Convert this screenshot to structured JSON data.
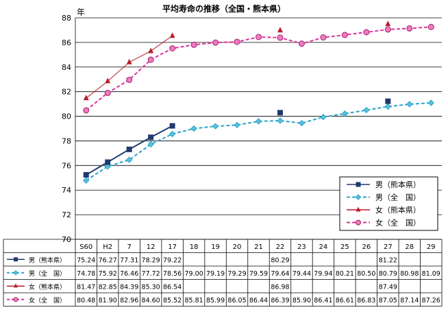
{
  "chart_data": {
    "type": "line",
    "title": "平均寿命の推移（全国・熊本県）",
    "ylabel": "年",
    "xlabel": "",
    "ylim": [
      70,
      88
    ],
    "yticks": [
      70,
      72,
      74,
      76,
      78,
      80,
      82,
      84,
      86,
      88
    ],
    "grid": true,
    "legend_position": "inside-bottom-right",
    "categories": [
      "S60",
      "H2",
      "7",
      "12",
      "17",
      "18",
      "19",
      "20",
      "21",
      "22",
      "23",
      "24",
      "25",
      "26",
      "27",
      "28",
      "29"
    ],
    "series": [
      {
        "name": "男（熊本県）",
        "color": "#1f3a6e",
        "line_style": "solid",
        "marker": "square",
        "values": [
          75.24,
          76.27,
          77.31,
          78.29,
          79.22,
          null,
          null,
          null,
          null,
          80.29,
          null,
          null,
          null,
          null,
          81.22,
          null,
          null
        ],
        "table_values": [
          "75.24",
          "76.27",
          "77.31",
          "78.29",
          "79.22",
          "",
          "",
          "",
          "",
          "80.29",
          "",
          "",
          "",
          "",
          "81.22",
          "",
          ""
        ]
      },
      {
        "name": "男（全　国）",
        "color": "#2aa5c8",
        "line_style": "dashed",
        "marker": "diamond",
        "values": [
          74.78,
          75.92,
          76.46,
          77.72,
          78.56,
          79.0,
          79.19,
          79.29,
          79.59,
          79.64,
          79.44,
          79.94,
          80.21,
          80.5,
          80.79,
          80.98,
          81.09
        ],
        "table_values": [
          "74.78",
          "75.92",
          "76.46",
          "77.72",
          "78.56",
          "79.00",
          "79.19",
          "79.29",
          "79.59",
          "79.64",
          "79.44",
          "79.94",
          "80.21",
          "80.50",
          "80.79",
          "80.98",
          "81.09"
        ]
      },
      {
        "name": "女（熊本県）",
        "color": "#b81d2a",
        "line_style": "solid",
        "marker": "triangle",
        "values": [
          81.47,
          82.85,
          84.39,
          85.3,
          86.54,
          null,
          null,
          null,
          null,
          86.98,
          null,
          null,
          null,
          null,
          87.49,
          null,
          null
        ],
        "table_values": [
          "81.47",
          "82.85",
          "84.39",
          "85.30",
          "86.54",
          "",
          "",
          "",
          "",
          "86.98",
          "",
          "",
          "",
          "",
          "87.49",
          "",
          ""
        ]
      },
      {
        "name": "女（全　国）",
        "color": "#e0309c",
        "line_style": "dashed",
        "marker": "circle",
        "values": [
          80.48,
          81.9,
          82.96,
          84.6,
          85.52,
          85.81,
          85.99,
          86.05,
          86.44,
          86.39,
          85.9,
          86.41,
          86.61,
          86.83,
          87.05,
          87.14,
          87.26
        ],
        "table_values": [
          "80.48",
          "81.90",
          "82.96",
          "84.60",
          "85.52",
          "85.81",
          "85.99",
          "86.05",
          "86.44",
          "86.39",
          "85.90",
          "86.41",
          "86.61",
          "86.83",
          "87.05",
          "87.14",
          "87.26"
        ]
      }
    ]
  }
}
